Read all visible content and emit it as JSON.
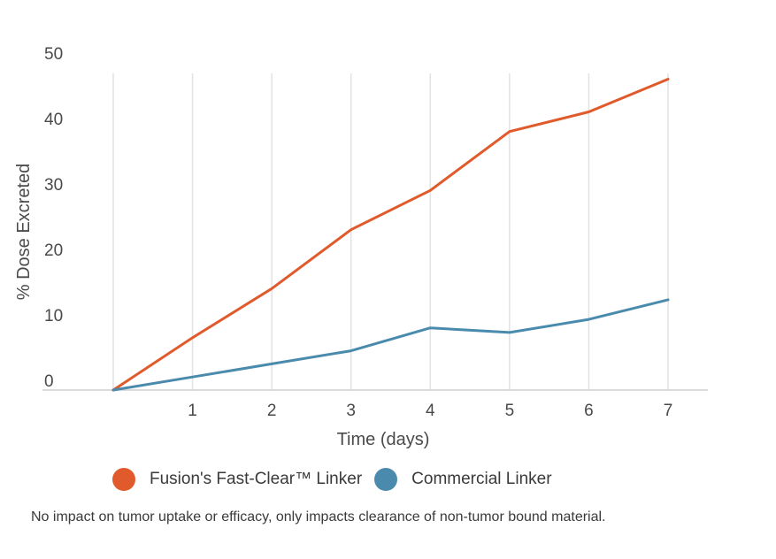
{
  "chart_data": {
    "type": "line",
    "xlabel": "Time (days)",
    "ylabel": "% Dose Excreted",
    "x": [
      0,
      1,
      2,
      3,
      4,
      5,
      6,
      7
    ],
    "x_tick_labels": [
      "1",
      "2",
      "3",
      "4",
      "5",
      "6",
      "7"
    ],
    "y_tick_labels": [
      "0",
      "10",
      "20",
      "30",
      "40",
      "50"
    ],
    "xlim": [
      0,
      7
    ],
    "ylim": [
      0,
      50
    ],
    "grid": "vertical",
    "legend_position": "bottom",
    "series": [
      {
        "name": "Fusion's Fast-Clear™ Linker",
        "color": "#e05a2b",
        "values": [
          0,
          8,
          15.5,
          24.5,
          30.5,
          39.5,
          42.5,
          47.5
        ]
      },
      {
        "name": "Commercial Linker",
        "color": "#4a8bad",
        "values": [
          0,
          2,
          4,
          6,
          9.5,
          8.8,
          10.8,
          13.8
        ]
      }
    ]
  },
  "footnote": "No impact on tumor uptake or efficacy, only impacts clearance of non-tumor bound material."
}
